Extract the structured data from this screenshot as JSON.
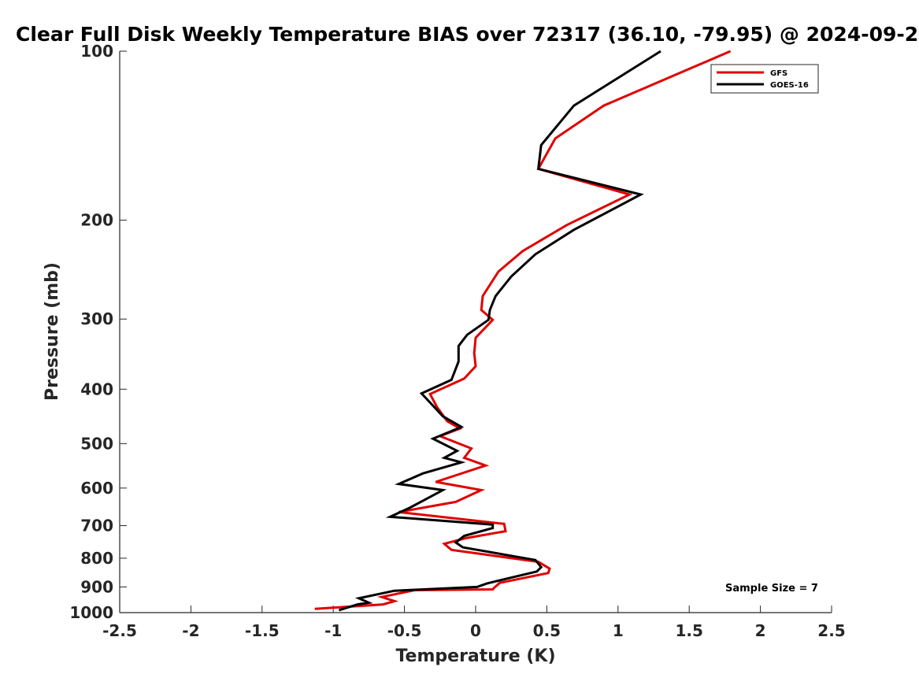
{
  "chart_data": {
    "type": "line",
    "title": "Clear Full Disk Weekly Temperature BIAS over 72317 (36.10, -79.95) @ 2024-09-2",
    "xlabel": "Temperature (K)",
    "ylabel": "Pressure (mb)",
    "xlim": [
      -2.5,
      2.5
    ],
    "ylim": [
      100,
      1000
    ],
    "y_scale": "log",
    "y_reversed": true,
    "xticks": [
      "-2.5",
      "-2",
      "-1.5",
      "-1",
      "-0.5",
      "0",
      "0.5",
      "1",
      "1.5",
      "2",
      "2.5"
    ],
    "yticks": [
      "100",
      "200",
      "300",
      "400",
      "500",
      "600",
      "700",
      "800",
      "900",
      "1000"
    ],
    "legend_position": "top-right",
    "annotation": "Sample Size = 7",
    "series": [
      {
        "name": "GFS",
        "color": "#e00000",
        "points": [
          [
            1.79,
            100
          ],
          [
            0.9,
            125
          ],
          [
            0.56,
            143
          ],
          [
            0.44,
            162
          ],
          [
            1.08,
            180
          ],
          [
            0.64,
            204
          ],
          [
            0.33,
            227
          ],
          [
            0.16,
            247
          ],
          [
            0.05,
            273
          ],
          [
            0.04,
            289
          ],
          [
            0.12,
            301
          ],
          [
            0.0,
            324
          ],
          [
            -0.01,
            345
          ],
          [
            0.0,
            364
          ],
          [
            -0.08,
            383
          ],
          [
            -0.32,
            408
          ],
          [
            -0.27,
            431
          ],
          [
            -0.2,
            456
          ],
          [
            -0.11,
            470
          ],
          [
            -0.25,
            485
          ],
          [
            -0.03,
            510
          ],
          [
            -0.08,
            530
          ],
          [
            0.07,
            547
          ],
          [
            -0.28,
            585
          ],
          [
            0.04,
            605
          ],
          [
            -0.14,
            635
          ],
          [
            -0.54,
            662
          ],
          [
            0.2,
            695
          ],
          [
            0.21,
            716
          ],
          [
            -0.07,
            737
          ],
          [
            -0.22,
            754
          ],
          [
            -0.17,
            773
          ],
          [
            0.44,
            812
          ],
          [
            0.52,
            835
          ],
          [
            0.51,
            850
          ],
          [
            0.17,
            885
          ],
          [
            0.13,
            903
          ],
          [
            0.12,
            909
          ],
          [
            -0.43,
            912
          ],
          [
            -0.66,
            938
          ],
          [
            -0.57,
            954
          ],
          [
            -0.65,
            967
          ],
          [
            -1.13,
            985
          ]
        ]
      },
      {
        "name": "GOES-16",
        "color": "#000000",
        "points": [
          [
            1.3,
            100
          ],
          [
            0.69,
            125
          ],
          [
            0.46,
            147
          ],
          [
            0.44,
            162
          ],
          [
            1.16,
            180
          ],
          [
            0.69,
            208
          ],
          [
            0.42,
            230
          ],
          [
            0.25,
            252
          ],
          [
            0.14,
            273
          ],
          [
            0.1,
            289
          ],
          [
            0.09,
            301
          ],
          [
            -0.06,
            320
          ],
          [
            -0.12,
            335
          ],
          [
            -0.12,
            357
          ],
          [
            -0.17,
            385
          ],
          [
            -0.38,
            407
          ],
          [
            -0.23,
            447
          ],
          [
            -0.1,
            467
          ],
          [
            -0.3,
            490
          ],
          [
            -0.13,
            515
          ],
          [
            -0.22,
            530
          ],
          [
            -0.1,
            540
          ],
          [
            -0.37,
            565
          ],
          [
            -0.54,
            590
          ],
          [
            -0.23,
            605
          ],
          [
            -0.46,
            650
          ],
          [
            -0.6,
            675
          ],
          [
            0.12,
            697
          ],
          [
            0.12,
            707
          ],
          [
            -0.08,
            730
          ],
          [
            -0.14,
            750
          ],
          [
            -0.09,
            765
          ],
          [
            0.42,
            806
          ],
          [
            0.46,
            830
          ],
          [
            0.43,
            845
          ],
          [
            0.08,
            887
          ],
          [
            0.01,
            900
          ],
          [
            -0.57,
            914
          ],
          [
            -0.82,
            943
          ],
          [
            -0.75,
            960
          ],
          [
            -0.83,
            967
          ],
          [
            -0.96,
            990
          ]
        ]
      }
    ]
  }
}
